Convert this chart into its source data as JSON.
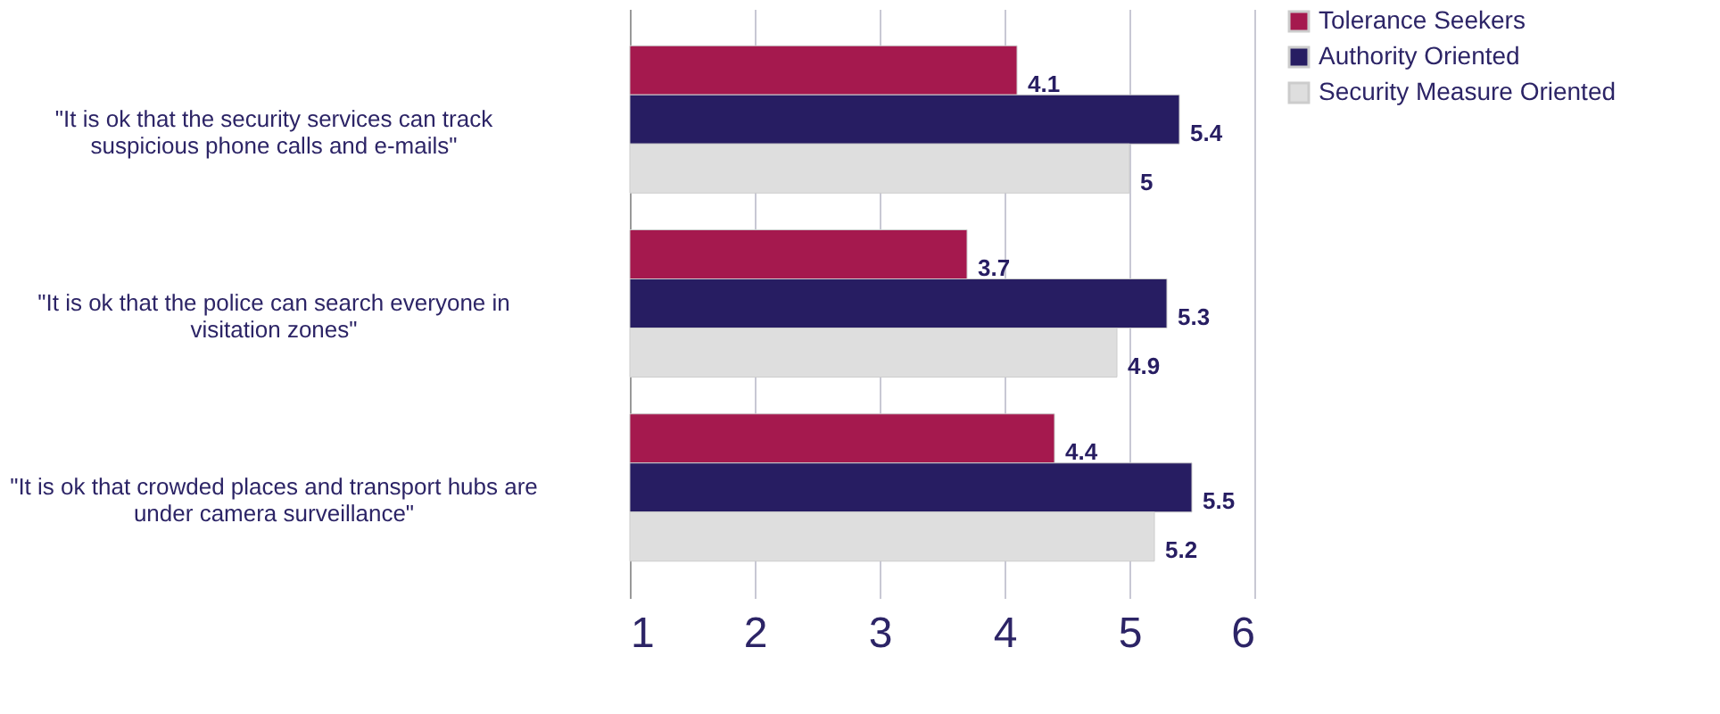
{
  "chart_data": {
    "type": "bar",
    "orientation": "horizontal",
    "categories": [
      "\"It is ok that the security services can track suspicious phone calls and e-mails\"",
      "\"It is ok that the police can search everyone in visitation zones\"",
      "\"It is ok that crowded places and transport hubs are under camera surveillance\""
    ],
    "series": [
      {
        "name": "Tolerance Seekers",
        "color": "#a5194e",
        "values": [
          4.1,
          3.7,
          4.4
        ]
      },
      {
        "name": "Authority Oriented",
        "color": "#271d62",
        "values": [
          5.4,
          5.3,
          5.5
        ]
      },
      {
        "name": "Security Measure Oriented",
        "color": "#dedede",
        "values": [
          5,
          4.9,
          5.2
        ]
      }
    ],
    "xlim": [
      1,
      6
    ],
    "xticks": [
      1,
      2,
      3,
      4,
      5,
      6
    ],
    "grid": "x",
    "legend": "right",
    "data_labels": true
  }
}
